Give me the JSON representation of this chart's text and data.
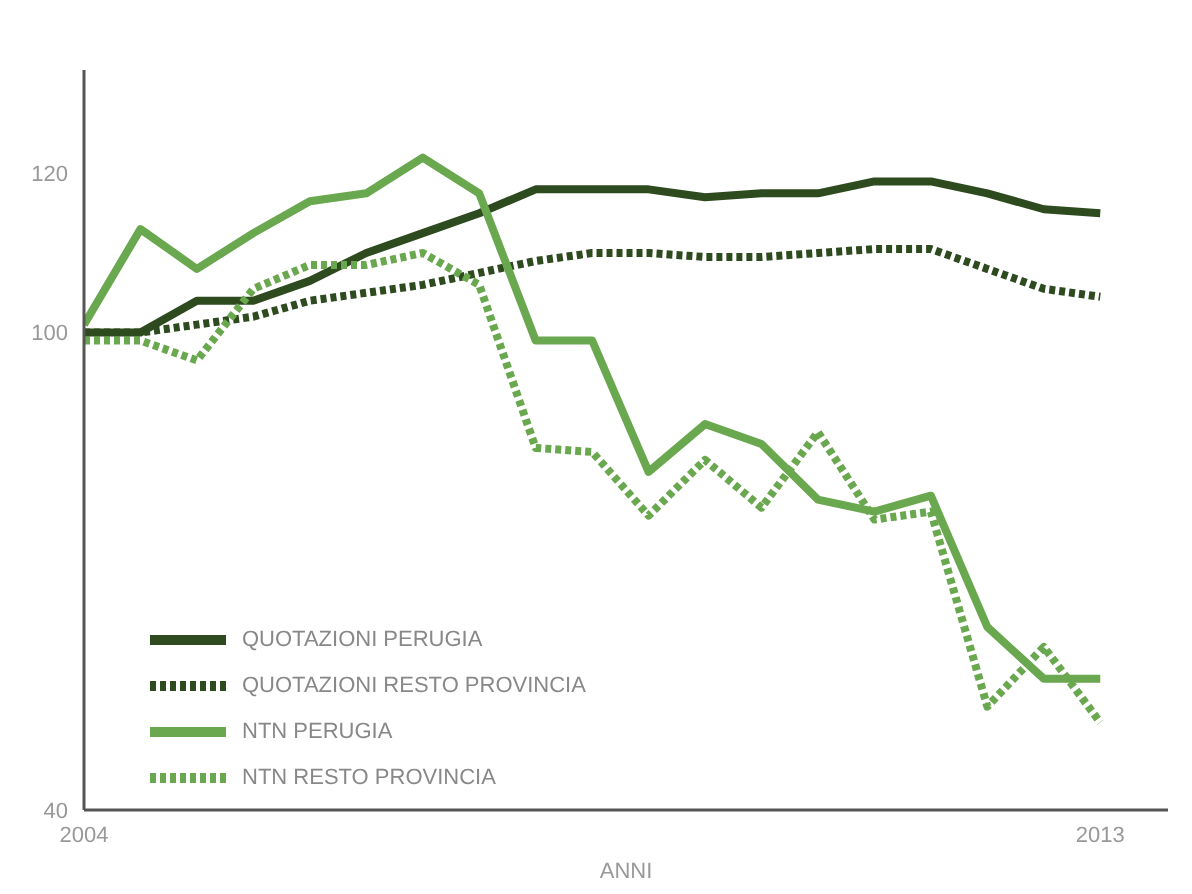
{
  "chart_data": {
    "type": "line",
    "xlabel": "ANNI",
    "x": [
      2004,
      2004.5,
      2005,
      2005.5,
      2006,
      2006.5,
      2007,
      2007.5,
      2008,
      2008.5,
      2009,
      2009.5,
      2010,
      2010.5,
      2011,
      2011.5,
      2012,
      2012.5,
      2013
    ],
    "series": [
      {
        "name": "QUOTAZIONI PERUGIA",
        "color": "#2e4a1f",
        "line_style": "solid",
        "values": [
          100,
          100,
          104,
          104,
          106.5,
          110,
          112.5,
          115,
          118,
          118,
          118,
          117,
          117.5,
          117.5,
          119,
          119,
          117.5,
          115.5,
          115
        ]
      },
      {
        "name": "QUOTAZIONI RESTO PROVINCIA",
        "color": "#2e4a1f",
        "line_style": "dotted",
        "values": [
          100,
          100,
          101,
          102,
          104,
          105,
          106,
          107.5,
          109,
          110,
          110,
          109.5,
          109.5,
          110,
          110.5,
          110.5,
          108,
          105.5,
          104.5
        ]
      },
      {
        "name": "NTN PERUGIA",
        "color": "#6aa84f",
        "line_style": "solid",
        "values": [
          101,
          113,
          108,
          112.5,
          116.5,
          117.5,
          122,
          117.5,
          99,
          99,
          82.5,
          88.5,
          86,
          79,
          77.5,
          79.5,
          63,
          56.5,
          56.5
        ]
      },
      {
        "name": "NTN RESTO PROVINCIA",
        "color": "#6aa84f",
        "line_style": "dotted",
        "values": [
          99,
          99,
          96.5,
          105.5,
          108.5,
          108.5,
          110,
          106,
          85.5,
          85,
          77,
          84,
          78,
          87.5,
          76.5,
          77.5,
          53,
          60.5,
          51
        ]
      }
    ],
    "xlim": [
      2004,
      2013.6
    ],
    "xticks": [
      2004,
      2013
    ],
    "ylim": [
      40,
      133
    ],
    "yticks": [
      40,
      100,
      120
    ],
    "grid": false,
    "legend": "bottom left",
    "marker": "none"
  }
}
